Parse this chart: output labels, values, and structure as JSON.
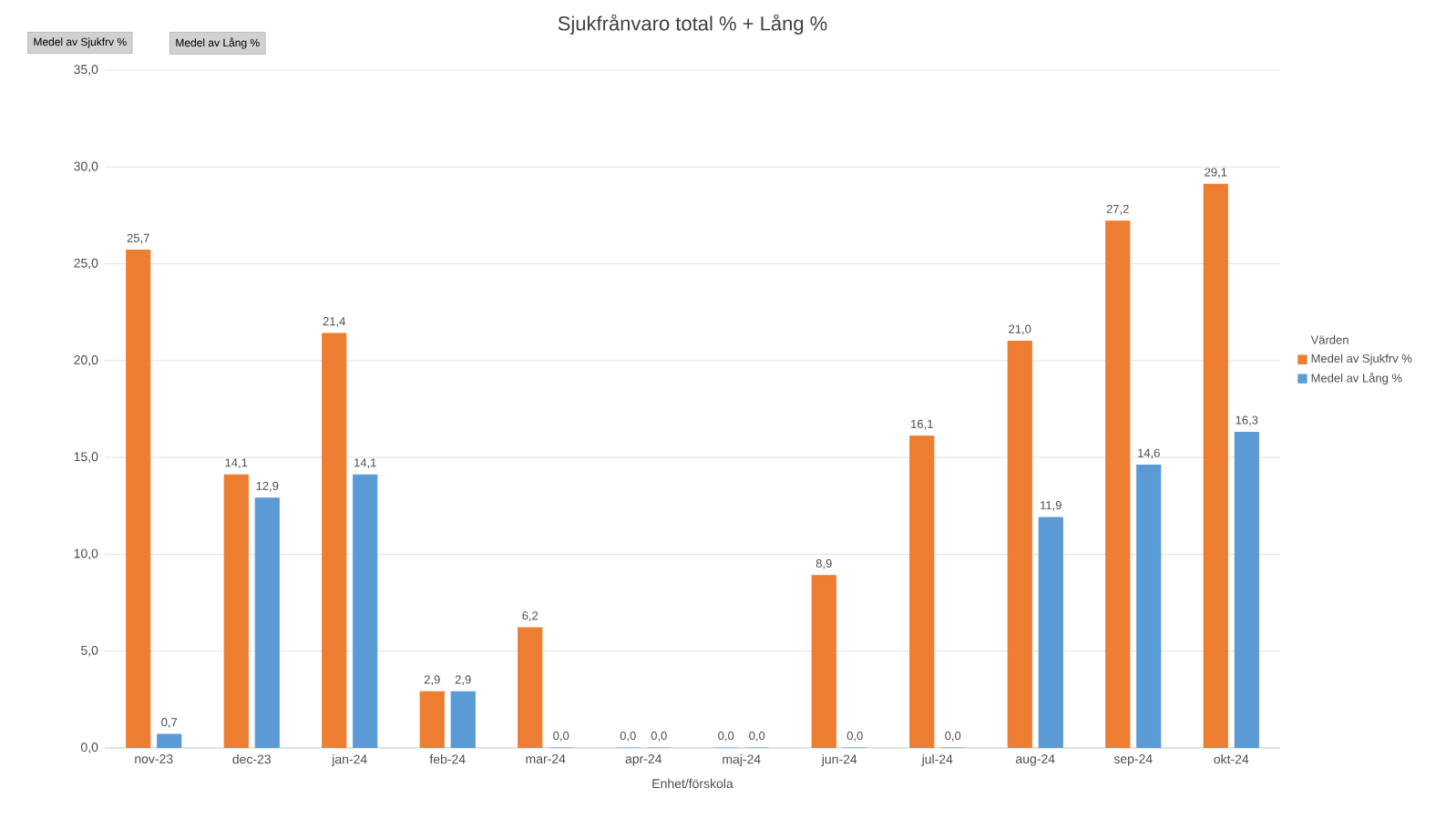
{
  "chart_data": {
    "type": "bar",
    "title": "Sjukfrånvaro total % + Lång %",
    "xlabel": "Enhet/förskola",
    "legend_title": "Värden",
    "annotations": [
      "Medel av Sjukfrv %",
      "Medel av Lång %"
    ],
    "categories": [
      "nov-23",
      "dec-23",
      "jan-24",
      "feb-24",
      "mar-24",
      "apr-24",
      "maj-24",
      "jun-24",
      "jul-24",
      "aug-24",
      "sep-24",
      "okt-24"
    ],
    "series": [
      {
        "name": "Medel av Sjukfrv %",
        "color": "#ed7d31",
        "values": [
          25.7,
          14.1,
          21.4,
          2.9,
          6.2,
          0,
          0,
          8.9,
          16.1,
          21.0,
          27.2,
          29.1
        ],
        "value_labels": [
          "25,7",
          "14,1",
          "21,4",
          "2,9",
          "6,2",
          "0,0",
          "0,0",
          "8,9",
          "16,1",
          "21,0",
          "27,2",
          "29,1"
        ]
      },
      {
        "name": "Medel av Lång %",
        "color": "#5b9bd5",
        "values": [
          0.7,
          12.9,
          14.1,
          2.9,
          0,
          0,
          0,
          0,
          0,
          11.9,
          14.6,
          16.3
        ],
        "value_labels": [
          "0,7",
          "12,9",
          "14,1",
          "2,9",
          "0,0",
          "0,0",
          "0,0",
          "0,0",
          "0,0",
          "11,9",
          "14,6",
          "16,3"
        ]
      }
    ],
    "ylim": [
      0,
      35
    ],
    "yticks": [
      {
        "value": 0,
        "label": "0,0"
      },
      {
        "value": 5,
        "label": "5,0"
      },
      {
        "value": 10,
        "label": "10,0"
      },
      {
        "value": 15,
        "label": "15,0"
      },
      {
        "value": 20,
        "label": "20,0"
      },
      {
        "value": 25,
        "label": "25,0"
      },
      {
        "value": 30,
        "label": "30,0"
      },
      {
        "value": 35,
        "label": "35,0"
      }
    ],
    "grid": "y",
    "legend": "right"
  }
}
